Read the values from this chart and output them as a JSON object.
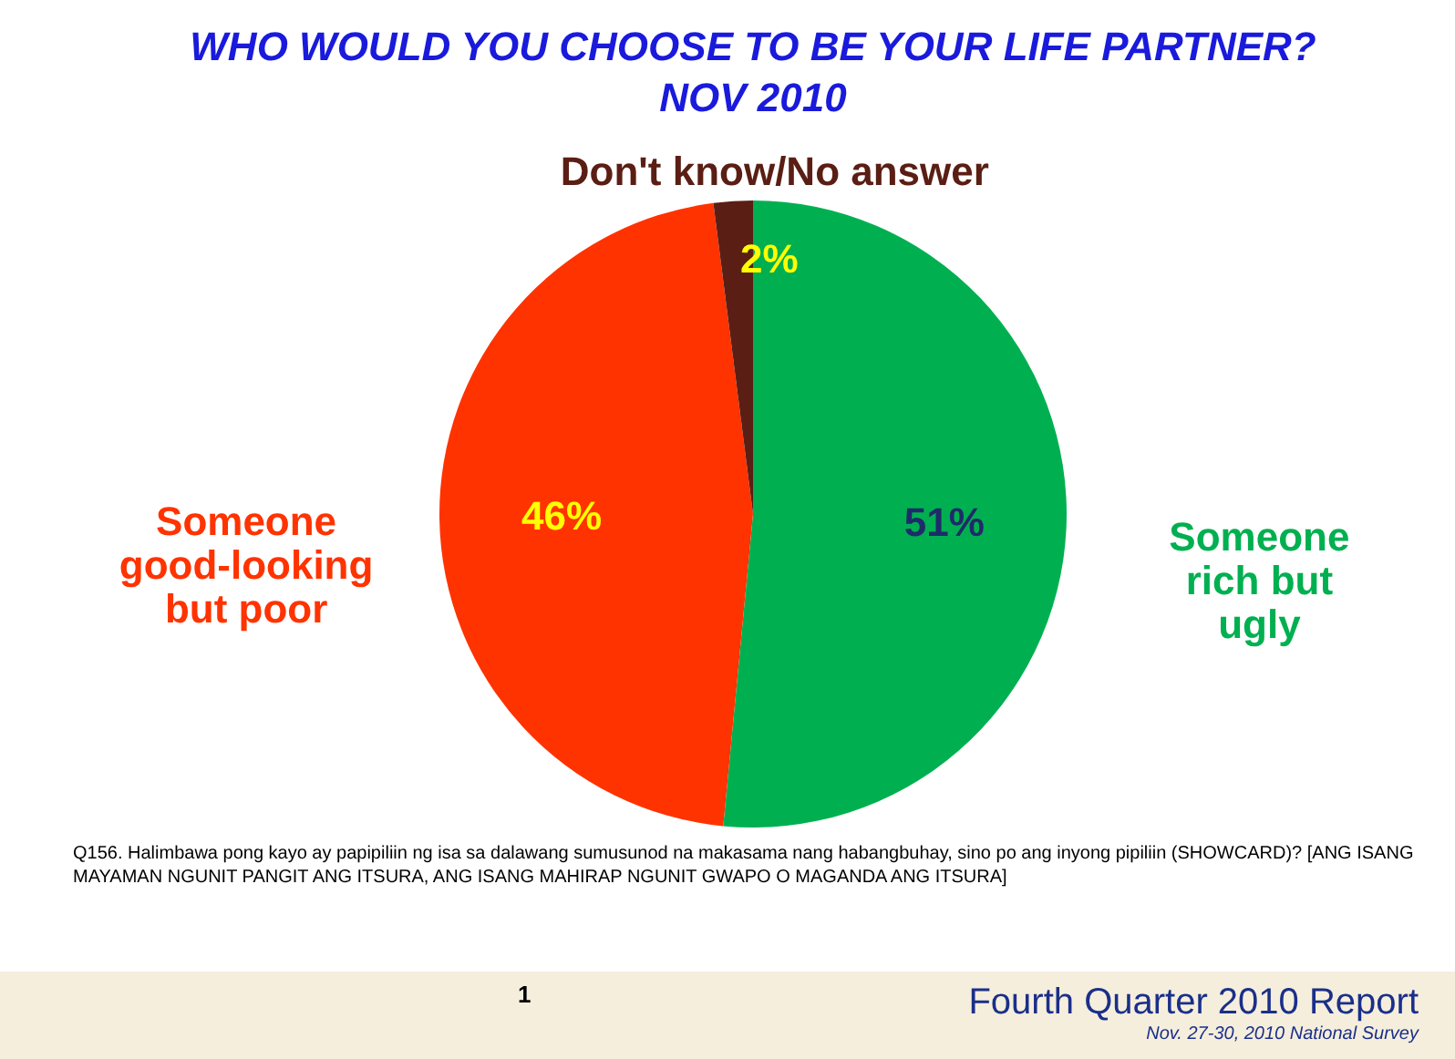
{
  "chart_data": {
    "type": "pie",
    "title": "WHO WOULD YOU CHOOSE TO BE YOUR LIFE PARTNER?",
    "subtitle": "NOV 2010",
    "categories": [
      "Someone rich but ugly",
      "Someone good-looking but poor",
      "Don't know/No answer"
    ],
    "values": [
      51,
      46,
      2
    ],
    "colors": [
      "#00b050",
      "#ff3300",
      "#5a1e14"
    ],
    "value_labels": [
      "51%",
      "46%",
      "2%"
    ],
    "annotations": [
      "Q156. Halimbawa pong kayo ay papipiliin ng isa sa dalawang sumusunod na makasama nang habangbuhay, sino po ang inyong pipiliin (SHOWCARD)?  [ANG ISANG MAYAMAN NGUNIT PANGIT ANG ITSURA, ANG ISANG MAHIRAP NGUNIT GWAPO O MAGANDA  ANG ITSURA]",
      "1",
      "Fourth Quarter 2010 Report",
      "Nov. 27-30, 2010 National Survey"
    ]
  }
}
